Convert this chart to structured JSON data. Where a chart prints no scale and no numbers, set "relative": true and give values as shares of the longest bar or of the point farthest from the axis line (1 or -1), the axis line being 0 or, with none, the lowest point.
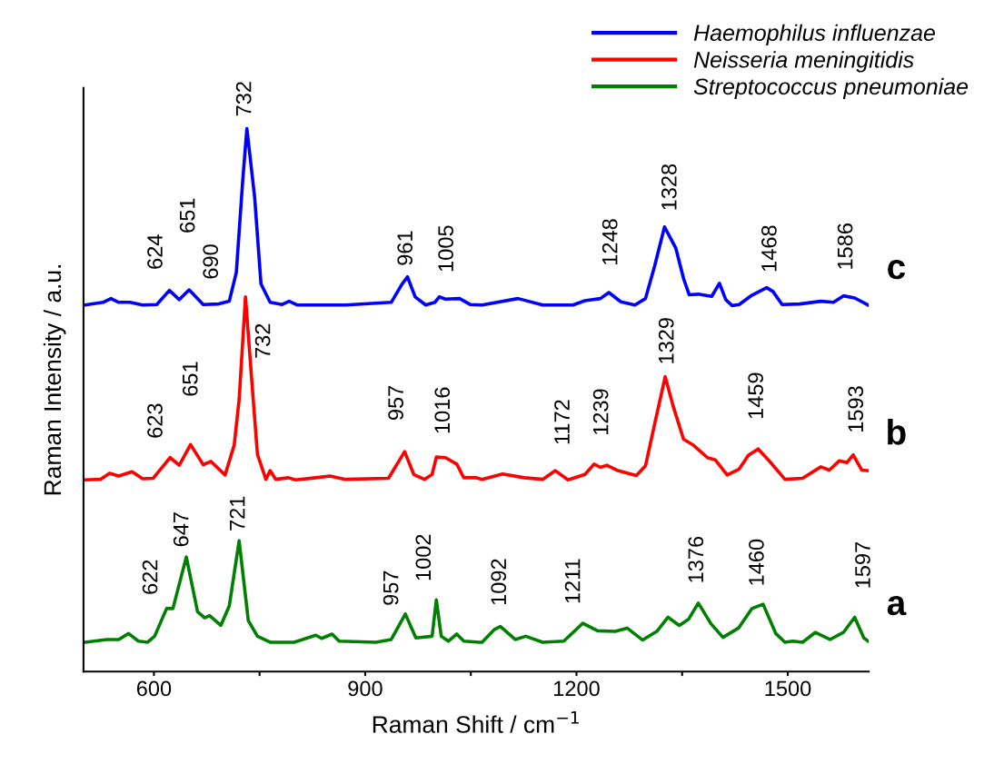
{
  "chart_data": {
    "type": "line",
    "relative": true,
    "xlabel": "Raman Shift / cm$^{−1}$",
    "ylabel": "Raman Intensity / a.u.",
    "xlim": [
      500,
      1615
    ],
    "xticks": [
      600,
      {
        "value": 750,
        "label": null
      },
      900,
      {
        "value": 1050,
        "label": null
      },
      1200,
      {
        "value": 1350,
        "label": null
      },
      1500
    ],
    "grid": false,
    "legend": "top right",
    "marker": "none",
    "line_style": "solid",
    "tick_labels": "x",
    "series": [
      {
        "name": "Haemophilus influenzae",
        "color": "#0000ff",
        "x": [
          502,
          528,
          539,
          550,
          566,
          584,
          604,
          622,
          636,
          650,
          670,
          692,
          707,
          717,
          726,
          732,
          743,
          752,
          765,
          782,
          792,
          804,
          872,
          937,
          952,
          960,
          971,
          986,
          999,
          1005,
          1014,
          1034,
          1049,
          1066,
          1117,
          1152,
          1195,
          1212,
          1234,
          1246,
          1263,
          1283,
          1298,
          1311,
          1325,
          1341,
          1352,
          1360,
          1373,
          1392,
          1403,
          1412,
          1421,
          1431,
          1449,
          1470,
          1479,
          1492,
          1517,
          1547,
          1565,
          1579,
          1595,
          1614
        ],
        "values": [
          0.675,
          0.68,
          0.687,
          0.68,
          0.68,
          0.675,
          0.676,
          0.702,
          0.685,
          0.703,
          0.676,
          0.677,
          0.682,
          0.735,
          0.903,
          1,
          0.874,
          0.714,
          0.68,
          0.676,
          0.682,
          0.675,
          0.675,
          0.68,
          0.713,
          0.727,
          0.69,
          0.675,
          0.68,
          0.69,
          0.686,
          0.687,
          0.676,
          0.675,
          0.687,
          0.675,
          0.675,
          0.683,
          0.687,
          0.698,
          0.681,
          0.675,
          0.687,
          0.747,
          0.819,
          0.78,
          0.724,
          0.694,
          0.695,
          0.691,
          0.715,
          0.685,
          0.674,
          0.676,
          0.693,
          0.707,
          0.7,
          0.676,
          0.677,
          0.682,
          0.68,
          0.692,
          0.688,
          0.675
        ]
      },
      {
        "name": "Neisseria meningitidis",
        "color": "#ff0000",
        "x": [
          502,
          524,
          537,
          550,
          569,
          584,
          599,
          623,
          636,
          652,
          670,
          681,
          701,
          714,
          721,
          730,
          741,
          747,
          759,
          765,
          773,
          791,
          801,
          830,
          850,
          872,
          933,
          956,
          969,
          984,
          995,
          1001,
          1014,
          1030,
          1040,
          1057,
          1066,
          1095,
          1126,
          1152,
          1170,
          1188,
          1212,
          1225,
          1234,
          1243,
          1259,
          1285,
          1298,
          1311,
          1326,
          1337,
          1352,
          1366,
          1386,
          1397,
          1414,
          1431,
          1444,
          1458,
          1475,
          1496,
          1521,
          1547,
          1559,
          1573,
          1584,
          1593,
          1605,
          1614
        ],
        "values": [
          0.353,
          0.354,
          0.365,
          0.36,
          0.368,
          0.355,
          0.356,
          0.394,
          0.38,
          0.418,
          0.381,
          0.387,
          0.362,
          0.417,
          0.501,
          0.69,
          0.501,
          0.4,
          0.354,
          0.37,
          0.354,
          0.357,
          0.353,
          0.357,
          0.36,
          0.354,
          0.356,
          0.405,
          0.363,
          0.354,
          0.363,
          0.395,
          0.394,
          0.382,
          0.357,
          0.357,
          0.354,
          0.364,
          0.357,
          0.354,
          0.37,
          0.353,
          0.363,
          0.382,
          0.376,
          0.38,
          0.37,
          0.361,
          0.379,
          0.456,
          0.543,
          0.49,
          0.428,
          0.417,
          0.394,
          0.39,
          0.362,
          0.373,
          0.398,
          0.41,
          0.386,
          0.354,
          0.356,
          0.377,
          0.371,
          0.388,
          0.385,
          0.399,
          0.371,
          0.37
        ]
      },
      {
        "name": "Streptococcus pneumoniae",
        "color": "#008000",
        "x": [
          502,
          533,
          550,
          564,
          578,
          591,
          601,
          618,
          627,
          646,
          662,
          672,
          679,
          695,
          707,
          721,
          734,
          747,
          765,
          799,
          830,
          838,
          853,
          863,
          915,
          937,
          957,
          972,
          995,
          1001,
          1008,
          1018,
          1030,
          1040,
          1062,
          1066,
          1083,
          1092,
          1113,
          1128,
          1152,
          1182,
          1209,
          1230,
          1255,
          1272,
          1294,
          1314,
          1330,
          1346,
          1359,
          1373,
          1391,
          1408,
          1430,
          1449,
          1465,
          1483,
          1496,
          1507,
          1521,
          1539,
          1560,
          1579,
          1595,
          1608,
          1614
        ],
        "values": [
          0.054,
          0.059,
          0.059,
          0.07,
          0.056,
          0.054,
          0.065,
          0.116,
          0.116,
          0.211,
          0.11,
          0.099,
          0.103,
          0.085,
          0.121,
          0.241,
          0.094,
          0.065,
          0.054,
          0.054,
          0.067,
          0.061,
          0.069,
          0.056,
          0.054,
          0.059,
          0.106,
          0.062,
          0.065,
          0.132,
          0.065,
          0.056,
          0.069,
          0.056,
          0.054,
          0.054,
          0.077,
          0.083,
          0.059,
          0.065,
          0.054,
          0.056,
          0.089,
          0.075,
          0.074,
          0.08,
          0.058,
          0.074,
          0.1,
          0.085,
          0.096,
          0.126,
          0.088,
          0.063,
          0.08,
          0.116,
          0.124,
          0.07,
          0.054,
          0.056,
          0.054,
          0.072,
          0.059,
          0.072,
          0.1,
          0.062,
          0.056
        ]
      }
    ],
    "annotations": [
      {
        "text": "624",
        "x": 622,
        "y": 0.702
      },
      {
        "text": "651",
        "x": 650,
        "y": 0.703
      },
      {
        "text": "690",
        "x": 692,
        "y": 0.677
      },
      {
        "text": "732",
        "x": 732,
        "y": 1
      },
      {
        "text": "961",
        "x": 960,
        "y": 0.727
      },
      {
        "text": "1005",
        "x": 1005,
        "y": 0.69
      },
      {
        "text": "1248",
        "x": 1246,
        "y": 0.698
      },
      {
        "text": "1328",
        "x": 1325,
        "y": 0.819
      },
      {
        "text": "1468",
        "x": 1470,
        "y": 0.707
      },
      {
        "text": "1586",
        "x": 1579,
        "y": 0.692
      },
      {
        "text": "623",
        "x": 623,
        "y": 0.394
      },
      {
        "text": "651",
        "x": 652,
        "y": 0.418
      },
      {
        "text": "732",
        "x": 730,
        "y": 0.69
      },
      {
        "text": "957",
        "x": 956,
        "y": 0.405
      },
      {
        "text": "1016",
        "x": 1014,
        "y": 0.394
      },
      {
        "text": "1172",
        "x": 1170,
        "y": 0.37
      },
      {
        "text": "1239",
        "x": 1243,
        "y": 0.38
      },
      {
        "text": "1329",
        "x": 1326,
        "y": 0.543
      },
      {
        "text": "1459",
        "x": 1458,
        "y": 0.41
      },
      {
        "text": "1593",
        "x": 1593,
        "y": 0.399
      },
      {
        "text": "622",
        "x": 627,
        "y": 0.116
      },
      {
        "text": "647",
        "x": 646,
        "y": 0.211
      },
      {
        "text": "721",
        "x": 721,
        "y": 0.241
      },
      {
        "text": "957",
        "x": 957,
        "y": 0.106
      },
      {
        "text": "1002",
        "x": 1001,
        "y": 0.132
      },
      {
        "text": "1092",
        "x": 1092,
        "y": 0.083
      },
      {
        "text": "1211",
        "x": 1209,
        "y": 0.089
      },
      {
        "text": "1376",
        "x": 1373,
        "y": 0.126
      },
      {
        "text": "1460",
        "x": 1465,
        "y": 0.124
      },
      {
        "text": "1597",
        "x": 1595,
        "y": 0.1
      },
      "c",
      "b",
      "a"
    ]
  }
}
